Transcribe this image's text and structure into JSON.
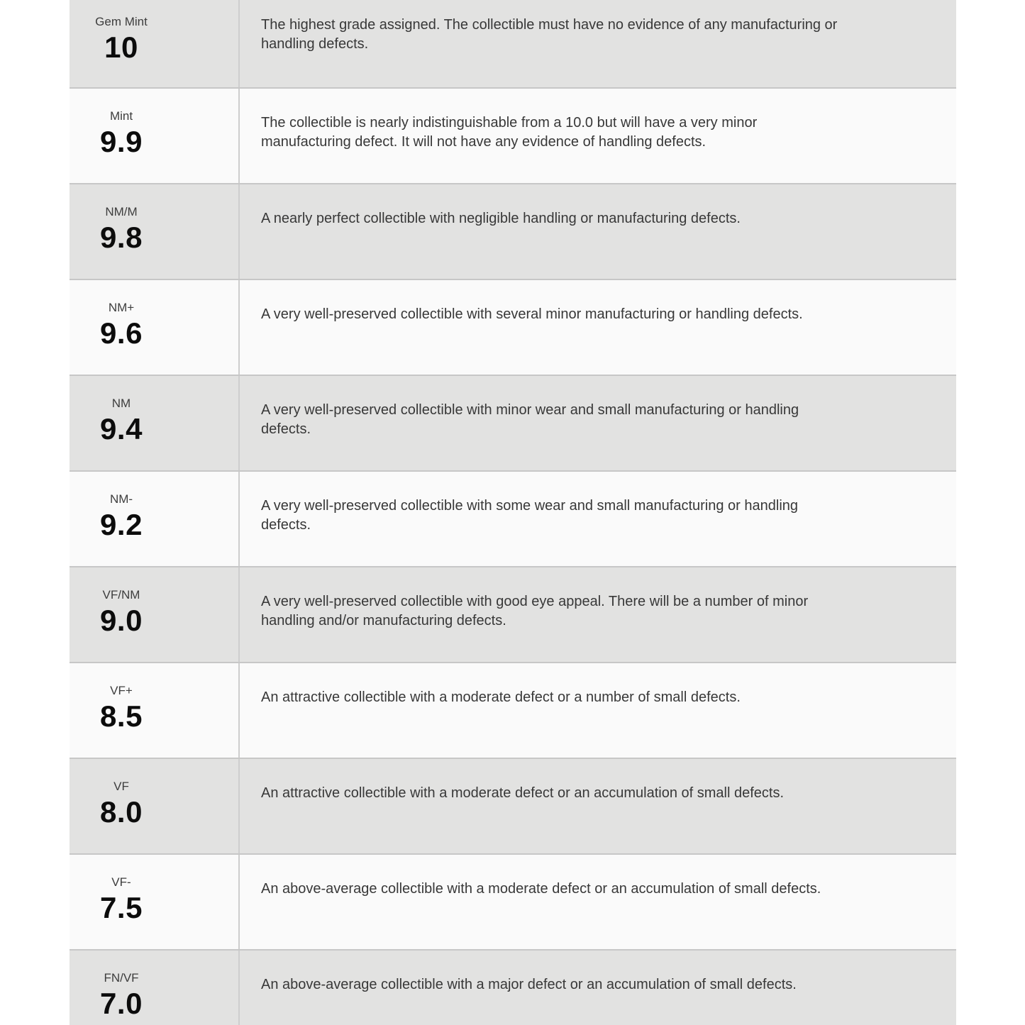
{
  "page": {
    "background_color": "#ffffff"
  },
  "grading_table": {
    "colors": {
      "row_shaded": "#e2e2e1",
      "row_plain": "#fafafa",
      "row_border": "#c7c7c7",
      "column_divider": "#cecece",
      "grade_name_text": "#3d3d3d",
      "grade_value_text": "#0c0c0c",
      "description_text": "#383838"
    },
    "rows": [
      {
        "grade_name": "Gem Mint",
        "grade_value": "10",
        "description": "The highest grade assigned. The collectible must have no evidence of any manufacturing or\nhandling defects."
      },
      {
        "grade_name": "Mint",
        "grade_value": "9.9",
        "description": "The collectible is nearly indistinguishable from a 10.0 but will have a very minor\nmanufacturing defect. It will not have any evidence of handling defects."
      },
      {
        "grade_name": "NM/M",
        "grade_value": "9.8",
        "description": "A nearly perfect collectible with negligible handling or manufacturing defects."
      },
      {
        "grade_name": "NM+",
        "grade_value": "9.6",
        "description": "A very well-preserved collectible with several minor manufacturing or handling defects."
      },
      {
        "grade_name": "NM",
        "grade_value": "9.4",
        "description": "A very well-preserved collectible with minor wear and small manufacturing or handling\ndefects."
      },
      {
        "grade_name": "NM-",
        "grade_value": "9.2",
        "description": "A very well-preserved collectible with some wear and small manufacturing or handling\ndefects."
      },
      {
        "grade_name": "VF/NM",
        "grade_value": "9.0",
        "description": "A very well-preserved collectible with good eye appeal. There will be a number of minor\nhandling and/or manufacturing defects."
      },
      {
        "grade_name": "VF+",
        "grade_value": "8.5",
        "description": "An attractive collectible with a moderate defect or a number of small defects."
      },
      {
        "grade_name": "VF",
        "grade_value": "8.0",
        "description": "An attractive collectible with a moderate defect or an accumulation of small defects."
      },
      {
        "grade_name": "VF-",
        "grade_value": "7.5",
        "description": "An above-average collectible with a moderate defect or an accumulation of small defects."
      },
      {
        "grade_name": "FN/VF",
        "grade_value": "7.0",
        "description": "An above-average collectible with a major defect or an accumulation of small defects."
      }
    ]
  }
}
